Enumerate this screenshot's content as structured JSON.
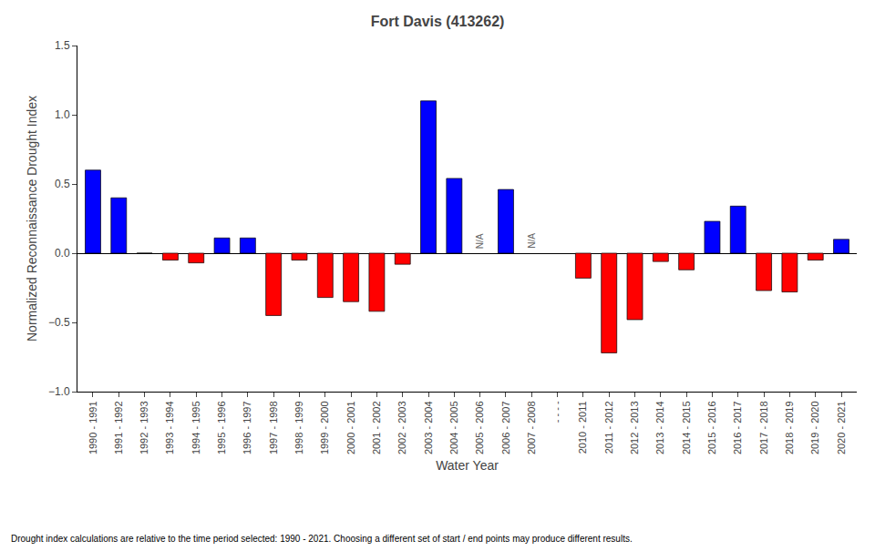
{
  "chart_data": {
    "type": "bar",
    "title": "Fort Davis (413262)",
    "x_label": "Water Year",
    "y_label": "Normalized Reconnaissance Drought Index",
    "footnote": "Drought index calculations are relative to the time period selected: 1990 - 2021. Choosing a different set of start / end points may produce different results.",
    "categories": [
      "1990 - 1991",
      "1991 - 1992",
      "1992 - 1993",
      "1993 - 1994",
      "1994 - 1995",
      "1995 - 1996",
      "1996 - 1997",
      "1997 - 1998",
      "1998 - 1999",
      "1999 - 2000",
      "2000 - 2001",
      "2001 - 2002",
      "2002 - 2003",
      "2003 - 2004",
      "2004 - 2005",
      "2005 - 2006",
      "2006 - 2007",
      "2007 - 2008",
      "- - - -",
      "2010 - 2011",
      "2011 - 2012",
      "2012 - 2013",
      "2013 - 2014",
      "2014 - 2015",
      "2015 - 2016",
      "2016 - 2017",
      "2017 - 2018",
      "2018 - 2019",
      "2019 - 2020",
      "2020 - 2021"
    ],
    "values": [
      0.6,
      0.4,
      0.0,
      -0.05,
      -0.07,
      0.11,
      0.11,
      -0.45,
      -0.05,
      -0.32,
      -0.35,
      -0.42,
      -0.08,
      1.1,
      0.54,
      null,
      0.46,
      null,
      null,
      -0.18,
      -0.72,
      -0.48,
      -0.06,
      -0.12,
      0.23,
      0.34,
      -0.27,
      -0.28,
      -0.05,
      0.1
    ],
    "colors": [
      "#0000FF",
      "#0000FF",
      "#0000FF",
      "#FF0000",
      "#FF0000",
      "#0000FF",
      "#0000FF",
      "#FF0000",
      "#FF0000",
      "#FF0000",
      "#FF0000",
      "#FF0000",
      "#FF0000",
      "#0000FF",
      "#0000FF",
      null,
      "#0000FF",
      null,
      null,
      "#FF0000",
      "#FF0000",
      "#FF0000",
      "#FF0000",
      "#FF0000",
      "#0000FF",
      "#0000FF",
      "#FF0000",
      "#FF0000",
      "#FF0000",
      "#0000FF"
    ],
    "annotations": [
      {
        "text": "N/A",
        "category": "2005 - 2006"
      },
      {
        "text": "N/A",
        "category": "2007 - 2008"
      }
    ],
    "ylim": [
      -1.0,
      1.5
    ],
    "yticks": [
      {
        "value": -1.0,
        "label": "−1.0"
      },
      {
        "value": -0.5,
        "label": "−0.5"
      },
      {
        "value": 0.0,
        "label": "0.0"
      },
      0.5,
      {
        "value": 1.0,
        "label": "1.0"
      },
      1.5
    ],
    "grid": false
  }
}
